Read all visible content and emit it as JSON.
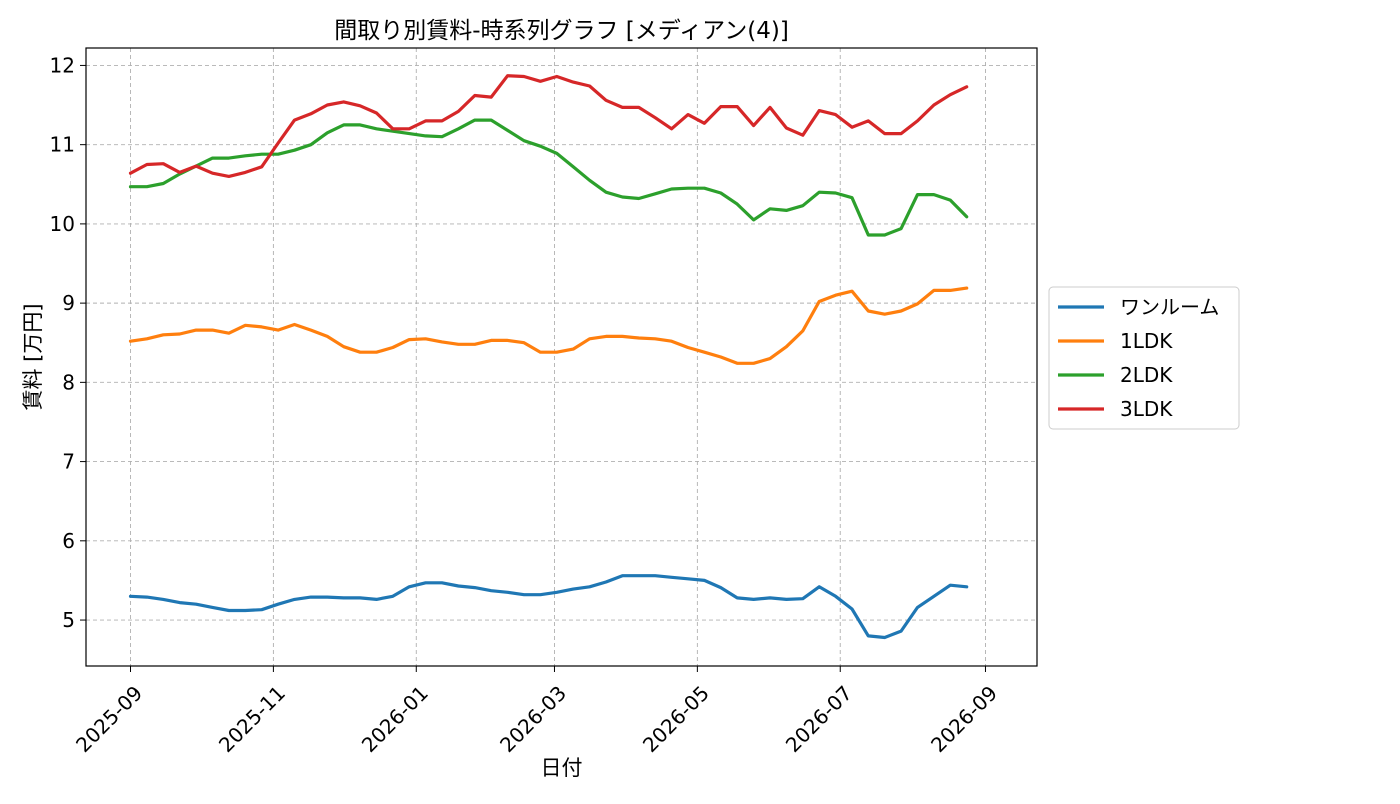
{
  "chart_data": {
    "type": "line",
    "title": "間取り別賃料-時系列グラフ [メディアン(4)]",
    "xlabel": "日付",
    "ylabel": "賃料 [万円]",
    "ylim": [
      4.42,
      12.22
    ],
    "xlim": [
      "2025-08-13",
      "2026-09-23"
    ],
    "grid": true,
    "legend_position": "center right, outside plot",
    "yticks": [
      5,
      6,
      7,
      8,
      9,
      10,
      11,
      12
    ],
    "xticks": [
      "2025-09-01",
      "2025-11-01",
      "2026-01-01",
      "2026-03-01",
      "2026-05-01",
      "2026-07-01",
      "2026-09-01"
    ],
    "xtick_labels": [
      "2025-09",
      "2025-11",
      "2026-01",
      "2026-03",
      "2026-05",
      "2026-07",
      "2026-09"
    ],
    "x": [
      "2025-09-01",
      "2025-09-08",
      "2025-09-15",
      "2025-09-22",
      "2025-09-29",
      "2025-10-06",
      "2025-10-13",
      "2025-10-20",
      "2025-10-27",
      "2025-11-03",
      "2025-11-10",
      "2025-11-17",
      "2025-11-24",
      "2025-12-01",
      "2025-12-08",
      "2025-12-15",
      "2025-12-22",
      "2025-12-29",
      "2026-01-05",
      "2026-01-12",
      "2026-01-19",
      "2026-01-26",
      "2026-02-02",
      "2026-02-09",
      "2026-02-16",
      "2026-02-23",
      "2026-03-02",
      "2026-03-09",
      "2026-03-16",
      "2026-03-23",
      "2026-03-30",
      "2026-04-06",
      "2026-04-13",
      "2026-04-20",
      "2026-04-27",
      "2026-05-04",
      "2026-05-11",
      "2026-05-18",
      "2026-05-25",
      "2026-06-01",
      "2026-06-08",
      "2026-06-15",
      "2026-06-22",
      "2026-06-29",
      "2026-07-06",
      "2026-07-13",
      "2026-07-20",
      "2026-07-27",
      "2026-08-03",
      "2026-08-10",
      "2026-08-17",
      "2026-08-24"
    ],
    "series": [
      {
        "name": "ワンルーム",
        "color": "#1f77b4",
        "values": [
          5.3,
          5.29,
          5.26,
          5.22,
          5.2,
          5.16,
          5.12,
          5.12,
          5.13,
          5.2,
          5.26,
          5.29,
          5.29,
          5.28,
          5.28,
          5.26,
          5.3,
          5.42,
          5.47,
          5.47,
          5.43,
          5.41,
          5.37,
          5.35,
          5.32,
          5.32,
          5.35,
          5.39,
          5.42,
          5.48,
          5.56,
          5.56,
          5.56,
          5.54,
          5.52,
          5.5,
          5.41,
          5.28,
          5.26,
          5.28,
          5.26,
          5.27,
          5.42,
          5.3,
          5.14,
          4.8,
          4.78,
          4.86,
          5.16,
          5.3,
          5.44,
          5.42
        ]
      },
      {
        "name": "1LDK",
        "color": "#ff7f0e",
        "values": [
          8.52,
          8.55,
          8.6,
          8.61,
          8.66,
          8.66,
          8.62,
          8.72,
          8.7,
          8.66,
          8.73,
          8.66,
          8.58,
          8.45,
          8.38,
          8.38,
          8.44,
          8.54,
          8.55,
          8.51,
          8.48,
          8.48,
          8.53,
          8.53,
          8.5,
          8.38,
          8.38,
          8.42,
          8.55,
          8.58,
          8.58,
          8.56,
          8.55,
          8.52,
          8.44,
          8.38,
          8.32,
          8.24,
          8.24,
          8.3,
          8.45,
          8.65,
          9.02,
          9.1,
          9.15,
          8.9,
          8.86,
          8.9,
          8.99,
          9.16,
          9.16,
          9.19
        ]
      },
      {
        "name": "2LDK",
        "color": "#2ca02c",
        "values": [
          10.47,
          10.47,
          10.51,
          10.63,
          10.73,
          10.83,
          10.83,
          10.86,
          10.88,
          10.88,
          10.93,
          11.0,
          11.15,
          11.25,
          11.25,
          11.2,
          11.17,
          11.14,
          11.11,
          11.1,
          11.2,
          11.31,
          11.31,
          11.18,
          11.05,
          10.98,
          10.89,
          10.72,
          10.55,
          10.4,
          10.34,
          10.32,
          10.38,
          10.44,
          10.45,
          10.45,
          10.39,
          10.25,
          10.05,
          10.19,
          10.17,
          10.23,
          10.4,
          10.39,
          10.33,
          9.86,
          9.86,
          9.94,
          10.37,
          10.37,
          10.3,
          10.09
        ]
      },
      {
        "name": "3LDK",
        "color": "#d62728",
        "values": [
          10.64,
          10.75,
          10.76,
          10.65,
          10.73,
          10.64,
          10.6,
          10.65,
          10.72,
          11.02,
          11.31,
          11.39,
          11.5,
          11.54,
          11.49,
          11.4,
          11.2,
          11.2,
          11.3,
          11.3,
          11.42,
          11.62,
          11.6,
          11.87,
          11.86,
          11.8,
          11.86,
          11.79,
          11.74,
          11.56,
          11.47,
          11.47,
          11.34,
          11.2,
          11.38,
          11.27,
          11.48,
          11.48,
          11.24,
          11.47,
          11.21,
          11.12,
          11.43,
          11.38,
          11.22,
          11.3,
          11.14,
          11.14,
          11.3,
          11.5,
          11.63,
          11.73
        ]
      }
    ]
  }
}
